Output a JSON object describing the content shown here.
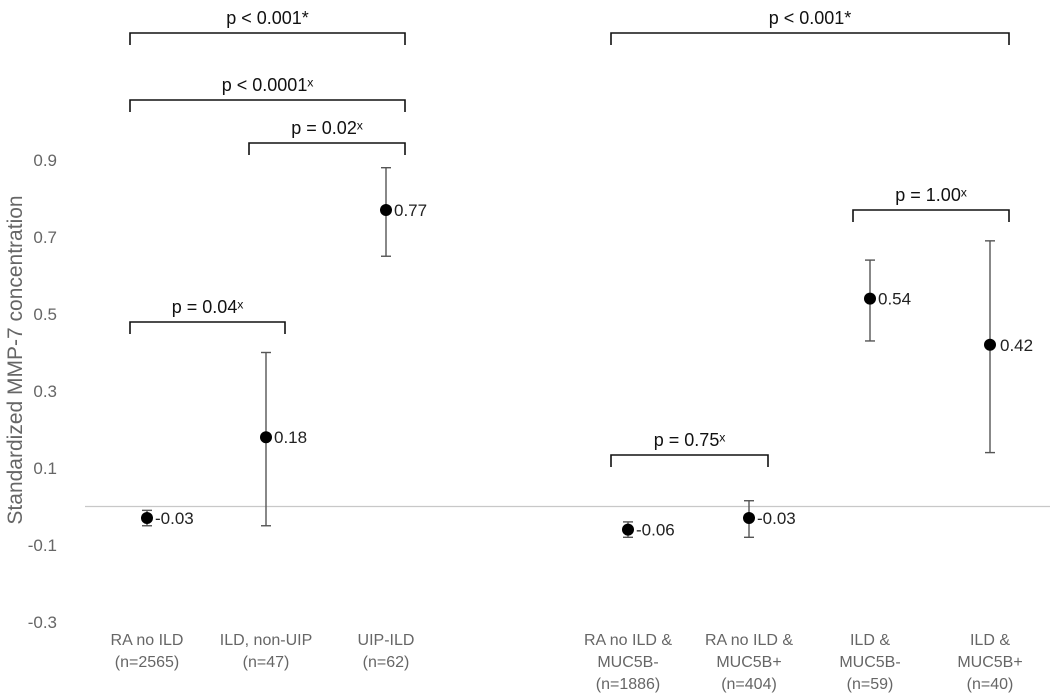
{
  "chart_data": {
    "type": "scatter",
    "ylabel": "Standardized MMP-7 concentration",
    "ylim": [
      -0.3,
      1.0
    ],
    "yticks": [
      "0.9",
      "0.7",
      "0.5",
      "0.3",
      "0.1",
      "-0.1",
      "-0.3"
    ],
    "ytick_values": [
      0.9,
      0.7,
      0.5,
      0.3,
      0.1,
      -0.1,
      -0.3
    ],
    "baseline": 0,
    "categories": [
      {
        "line1": "RA no ILD",
        "line2": "(n=2565)",
        "line3": ""
      },
      {
        "line1": "ILD, non-UIP",
        "line2": "(n=47)",
        "line3": ""
      },
      {
        "line1": "UIP-ILD",
        "line2": "(n=62)",
        "line3": ""
      },
      {
        "line1": "RA no ILD &",
        "line2": "MUC5B-",
        "line3": "(n=1886)"
      },
      {
        "line1": "RA no ILD &",
        "line2": "MUC5B+",
        "line3": "(n=404)"
      },
      {
        "line1": "ILD &",
        "line2": "MUC5B-",
        "line3": "(n=59)"
      },
      {
        "line1": "ILD &",
        "line2": "MUC5B+",
        "line3": "(n=40)"
      }
    ],
    "series": [
      {
        "points": [
          {
            "value": -0.03,
            "label": "-0.03",
            "err_low": -0.05,
            "err_high": -0.01
          },
          {
            "value": 0.18,
            "label": "0.18",
            "err_low": -0.05,
            "err_high": 0.4
          },
          {
            "value": 0.77,
            "label": "0.77",
            "err_low": 0.65,
            "err_high": 0.88
          },
          {
            "value": -0.06,
            "label": "-0.06",
            "err_low": -0.08,
            "err_high": -0.04
          },
          {
            "value": -0.03,
            "label": "-0.03",
            "err_low": -0.08,
            "err_high": 0.015
          },
          {
            "value": 0.54,
            "label": "0.54",
            "err_low": 0.43,
            "err_high": 0.64
          },
          {
            "value": 0.42,
            "label": "0.42",
            "err_low": 0.14,
            "err_high": 0.69
          }
        ]
      }
    ],
    "annotations": [
      {
        "text": "p < 0.001*",
        "from": 0,
        "to": 2
      },
      {
        "text": "p < 0.0001ˣ",
        "from": 0,
        "to": 2
      },
      {
        "text": "p = 0.02ˣ",
        "from": 1,
        "to": 2
      },
      {
        "text": "p = 0.04ˣ",
        "from": 0,
        "to": 1
      },
      {
        "text": "p < 0.001*",
        "from": 3,
        "to": 6
      },
      {
        "text": "p = 1.00ˣ",
        "from": 5,
        "to": 6
      },
      {
        "text": "p = 0.75ˣ",
        "from": 3,
        "to": 4
      }
    ],
    "grid": false,
    "legend": "none",
    "colors": {
      "point": "#000000",
      "errorbar": "#555555",
      "bracket": "#111111",
      "baseline": "#c8c8c8",
      "text": "#666666"
    }
  }
}
